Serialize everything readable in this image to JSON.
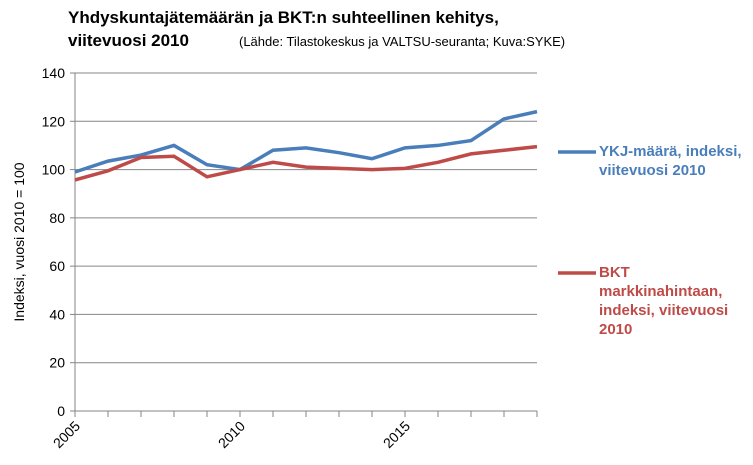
{
  "chart_data": {
    "type": "line",
    "title": "Yhdyskuntajätemäärän ja BKT:n suhteellinen kehitys, viitevuosi 2010",
    "subtitle": "(Lähde: Tilastokeskus ja VALTSU-seuranta; Kuva:SYKE)",
    "y_label": "Indeksi, vuosi 2010 = 100",
    "x": [
      2005,
      2006,
      2007,
      2008,
      2009,
      2010,
      2011,
      2012,
      2013,
      2014,
      2015,
      2016,
      2017,
      2018,
      2019
    ],
    "series": [
      {
        "name": "YKJ-määrä, indeksi, viitevuosi 2010",
        "color": "#4a7ebb",
        "values": [
          99,
          103.5,
          106,
          110,
          102,
          100,
          108,
          109,
          107,
          104.5,
          109,
          110,
          112,
          121,
          124
        ]
      },
      {
        "name": "BKT markkinahintaan, indeksi, viitevuosi 2010",
        "color": "#be4b48",
        "values": [
          95.7,
          99.5,
          105,
          105.5,
          97,
          100,
          103,
          101,
          100.5,
          100,
          100.5,
          103,
          106.5,
          108,
          109.5
        ]
      }
    ],
    "xlim": [
      2005,
      2019
    ],
    "xticks": [
      2005,
      2010,
      2015
    ],
    "ylim": [
      0,
      140
    ],
    "yticks": [
      0,
      20,
      40,
      60,
      80,
      100,
      120,
      140
    ],
    "grid": true,
    "legend": "right"
  }
}
